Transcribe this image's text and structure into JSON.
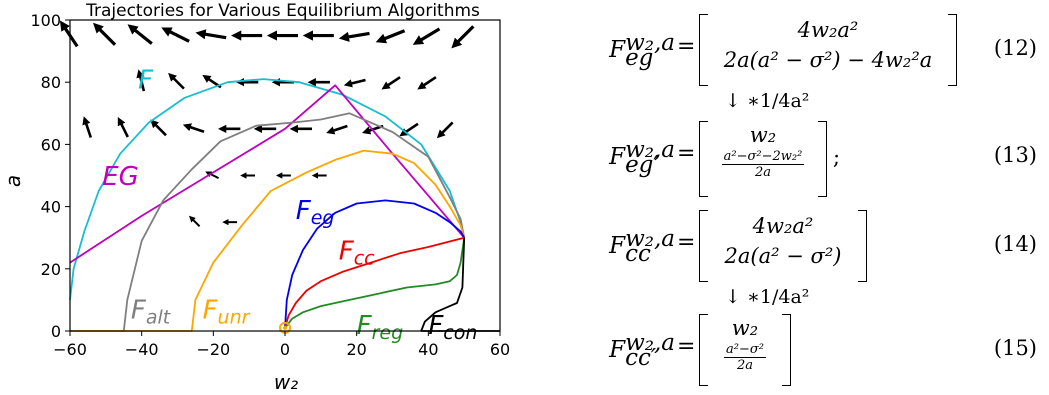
{
  "chart_data": {
    "type": "line",
    "title": "Trajectories for Various Equilibrium Algorithms",
    "xlabel": "w₂",
    "ylabel": "a",
    "xlim": [
      -60,
      60
    ],
    "ylim": [
      0,
      100
    ],
    "xticks": [
      "−60",
      "−40",
      "−20",
      "0",
      "20",
      "40",
      "60"
    ],
    "yticks": [
      "0",
      "20",
      "40",
      "60",
      "80",
      "100"
    ],
    "grid": false,
    "series": [
      {
        "name": "F",
        "color": "#17becf",
        "label_at": [
          -41,
          78
        ],
        "points": [
          [
            -60,
            10
          ],
          [
            -59,
            20
          ],
          [
            -56,
            32
          ],
          [
            -52,
            45
          ],
          [
            -46,
            57
          ],
          [
            -38,
            67
          ],
          [
            -28,
            75
          ],
          [
            -16,
            80
          ],
          [
            -6,
            81
          ],
          [
            4,
            80
          ],
          [
            16,
            76
          ],
          [
            28,
            69
          ],
          [
            38,
            60
          ],
          [
            46,
            45
          ],
          [
            49,
            35
          ],
          [
            50,
            30
          ]
        ]
      },
      {
        "name": "EG",
        "color": "#bf00bf",
        "label_at": [
          -51,
          47
        ],
        "points": [
          [
            -60,
            22
          ],
          [
            -40,
            37
          ],
          [
            -20,
            51
          ],
          [
            0,
            65
          ],
          [
            14,
            79
          ],
          [
            30,
            57
          ],
          [
            50,
            30
          ]
        ]
      },
      {
        "name": "F_alt",
        "color": "#7f7f7f",
        "label_at": [
          -43,
          4
        ],
        "points": [
          [
            -60,
            0
          ],
          [
            -45,
            0
          ],
          [
            -44,
            10
          ],
          [
            -40,
            29
          ],
          [
            -34,
            42
          ],
          [
            -26,
            52
          ],
          [
            -18,
            61
          ],
          [
            -8,
            66
          ],
          [
            2,
            67
          ],
          [
            10,
            68
          ],
          [
            18,
            70
          ],
          [
            30,
            64
          ],
          [
            40,
            56
          ],
          [
            46,
            43
          ],
          [
            49,
            36
          ],
          [
            50,
            30
          ]
        ]
      },
      {
        "name": "F_unr",
        "color": "#ffa500",
        "label_at": [
          -23,
          4
        ],
        "points": [
          [
            -60,
            0
          ],
          [
            -26,
            0
          ],
          [
            -25,
            10
          ],
          [
            -20,
            22
          ],
          [
            -12,
            34
          ],
          [
            -4,
            45
          ],
          [
            6,
            51
          ],
          [
            14,
            55
          ],
          [
            22,
            58
          ],
          [
            30,
            57
          ],
          [
            36,
            54
          ],
          [
            42,
            47
          ],
          [
            46,
            40
          ],
          [
            49,
            34
          ],
          [
            50,
            30
          ]
        ]
      },
      {
        "name": "F_eg",
        "color": "#0000ee",
        "label_at": [
          3,
          36
        ],
        "points": [
          [
            0,
            1
          ],
          [
            0.5,
            10
          ],
          [
            2,
            18
          ],
          [
            5,
            26
          ],
          [
            9,
            33
          ],
          [
            14,
            38
          ],
          [
            20,
            41
          ],
          [
            28,
            42
          ],
          [
            36,
            41
          ],
          [
            42,
            38
          ],
          [
            46,
            35
          ],
          [
            49,
            32
          ],
          [
            50,
            30
          ]
        ]
      },
      {
        "name": "F_cc",
        "color": "#ee0000",
        "label_at": [
          15,
          23
        ],
        "points": [
          [
            0,
            1
          ],
          [
            1,
            5
          ],
          [
            3,
            9
          ],
          [
            6,
            13
          ],
          [
            10,
            16
          ],
          [
            16,
            19
          ],
          [
            24,
            22
          ],
          [
            32,
            25
          ],
          [
            40,
            27
          ],
          [
            50,
            30
          ]
        ]
      },
      {
        "name": "F_reg",
        "color": "#228b22",
        "label_at": [
          20,
          -1
        ],
        "points": [
          [
            0,
            1
          ],
          [
            2,
            4
          ],
          [
            5,
            6
          ],
          [
            10,
            8
          ],
          [
            18,
            10
          ],
          [
            26,
            12
          ],
          [
            34,
            14
          ],
          [
            42,
            15
          ],
          [
            46,
            16
          ],
          [
            48,
            18
          ],
          [
            49,
            22
          ],
          [
            50,
            30
          ]
        ]
      },
      {
        "name": "F_con",
        "color": "#000000",
        "label_at": [
          40,
          -1
        ],
        "points": [
          [
            60,
            0
          ],
          [
            38,
            0
          ],
          [
            39,
            3
          ],
          [
            42,
            6
          ],
          [
            46,
            8
          ],
          [
            48,
            9
          ],
          [
            49.5,
            14
          ],
          [
            50,
            30
          ]
        ]
      }
    ],
    "vector_field": [
      [
        -60,
        95,
        -2,
        3,
        "long"
      ],
      [
        -50,
        95,
        -4,
        4,
        "long"
      ],
      [
        -40,
        95,
        -5,
        4,
        "long"
      ],
      [
        -30,
        95,
        -6,
        3,
        "long"
      ],
      [
        -20,
        95,
        -6,
        1,
        "long"
      ],
      [
        -10,
        95,
        -6,
        0,
        "long"
      ],
      [
        0,
        95,
        -6,
        0,
        "long"
      ],
      [
        10,
        95,
        -6,
        0,
        "long"
      ],
      [
        20,
        95,
        -6,
        -1,
        "long"
      ],
      [
        30,
        95,
        -5,
        -2,
        "long"
      ],
      [
        40,
        95,
        -5,
        -3,
        "long"
      ],
      [
        50,
        95,
        -4,
        -4,
        "long"
      ],
      [
        -40,
        80,
        -1,
        4,
        "short"
      ],
      [
        -30,
        80,
        -2,
        2,
        "short"
      ],
      [
        -20,
        80,
        -3,
        2,
        "short"
      ],
      [
        -10,
        80,
        -4,
        0,
        "short"
      ],
      [
        0,
        80,
        -4,
        0,
        "short"
      ],
      [
        10,
        80,
        -4,
        0,
        "short"
      ],
      [
        20,
        80,
        -4,
        -1,
        "short"
      ],
      [
        30,
        80,
        -3,
        -2,
        "short"
      ],
      [
        40,
        80,
        -3,
        -2,
        "short"
      ],
      [
        -55,
        65,
        -1,
        3,
        "short"
      ],
      [
        -45,
        65,
        -1,
        2,
        "short"
      ],
      [
        -35,
        65,
        -2,
        2,
        "short"
      ],
      [
        -25,
        65,
        -3,
        1,
        "short"
      ],
      [
        -15,
        65,
        -3,
        0,
        "short"
      ],
      [
        -5,
        65,
        -3,
        0,
        "short"
      ],
      [
        5,
        65,
        -3,
        0,
        "short"
      ],
      [
        15,
        65,
        -3,
        -1,
        "short"
      ],
      [
        25,
        65,
        -3,
        -1,
        "short"
      ],
      [
        35,
        65,
        -3,
        -2,
        "short"
      ],
      [
        45,
        65,
        -2,
        -2,
        "short"
      ],
      [
        -20,
        50,
        -2,
        1,
        "tiny"
      ],
      [
        -10,
        50,
        -2,
        0,
        "tiny"
      ],
      [
        0,
        50,
        -2,
        0,
        "tiny"
      ],
      [
        10,
        50,
        -2,
        0,
        "tiny"
      ],
      [
        -25,
        35,
        -1,
        1,
        "tiny"
      ],
      [
        -15,
        35,
        -1,
        0,
        "tiny"
      ]
    ],
    "marker": {
      "x": 0,
      "y": 1,
      "color": "#ffa500"
    }
  },
  "equations": [
    {
      "tag": "(12)",
      "sup": "w₂,a",
      "sub": "eg",
      "rows": [
        "4w₂a²",
        "2a(a² − σ²) − 4w₂²a"
      ],
      "suffix": ""
    },
    {
      "tag": "(13)",
      "sup": "w₂,a",
      "sub": "eg′",
      "rows": [
        "w₂"
      ],
      "frac_num": "a²−σ²−2w₂²",
      "frac_den": "2a",
      "suffix": ";"
    },
    {
      "tag": "(14)",
      "sup": "w₂,a",
      "sub": "cc",
      "rows": [
        "4w₂a²",
        "2a(a² − σ²)"
      ],
      "suffix": ""
    },
    {
      "tag": "(15)",
      "sup": "w₂,a",
      "sub": "cc′",
      "rows": [
        "w₂"
      ],
      "frac_num": "a²−σ²",
      "frac_den": "2a",
      "suffix": ""
    }
  ],
  "scale_note": "↓ ∗1/4a²",
  "func_letter": "F"
}
